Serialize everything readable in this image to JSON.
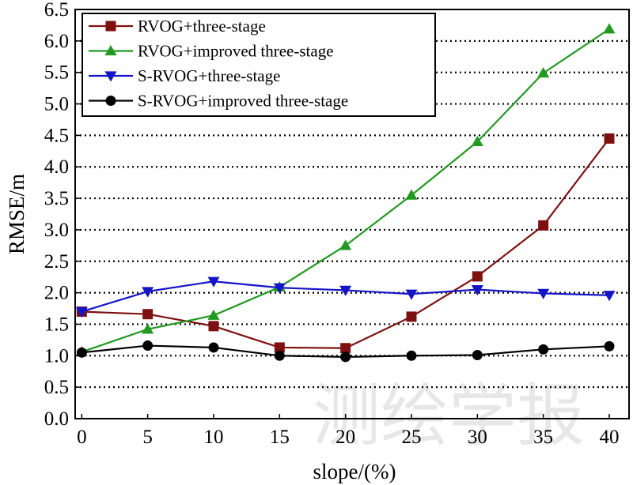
{
  "chart_data": {
    "type": "line",
    "title": "",
    "xlabel": "slope/(%)",
    "ylabel": "RMSE/m",
    "x": [
      0,
      5,
      10,
      15,
      20,
      25,
      30,
      35,
      40
    ],
    "xlim": [
      -0.5,
      41.5
    ],
    "ylim": [
      0,
      6.5
    ],
    "xticks": [
      0,
      5,
      10,
      15,
      20,
      25,
      30,
      35,
      40
    ],
    "yticks": [
      0,
      0.5,
      1.0,
      1.5,
      2.0,
      2.5,
      3.0,
      3.5,
      4.0,
      4.5,
      5.0,
      5.5,
      6.0,
      6.5
    ],
    "xtick_labels": [
      "0",
      "5",
      "10",
      "15",
      "20",
      "25",
      "30",
      "35",
      "40"
    ],
    "ytick_labels": [
      "0.0",
      "0.5",
      "1.0",
      "1.5",
      "2.0",
      "2.5",
      "3.0",
      "3.5",
      "4.0",
      "4.5",
      "5.0",
      "5.5",
      "6.0",
      "6.5"
    ],
    "grid": "horizontal dotted",
    "legend_position": "top-left",
    "series": [
      {
        "name": "RVOG+three-stage",
        "color": "#7f1010",
        "marker": "square",
        "values": [
          1.7,
          1.66,
          1.47,
          1.13,
          1.12,
          1.62,
          2.26,
          3.07,
          4.45
        ]
      },
      {
        "name": "RVOG+improved three-stage",
        "color": "#1f9a1f",
        "marker": "triangle-up",
        "values": [
          1.06,
          1.42,
          1.64,
          2.09,
          2.75,
          3.55,
          4.4,
          5.49,
          6.19
        ]
      },
      {
        "name": "S-RVOG+three-stage",
        "color": "#1414c8",
        "marker": "triangle-down",
        "values": [
          1.7,
          2.02,
          2.18,
          2.08,
          2.04,
          1.98,
          2.05,
          1.99,
          1.96
        ]
      },
      {
        "name": "S-RVOG+improved three-stage",
        "color": "#000000",
        "marker": "circle",
        "values": [
          1.05,
          1.16,
          1.13,
          1.0,
          0.98,
          1.0,
          1.01,
          1.1,
          1.15
        ]
      }
    ]
  },
  "watermark": "测绘学报"
}
